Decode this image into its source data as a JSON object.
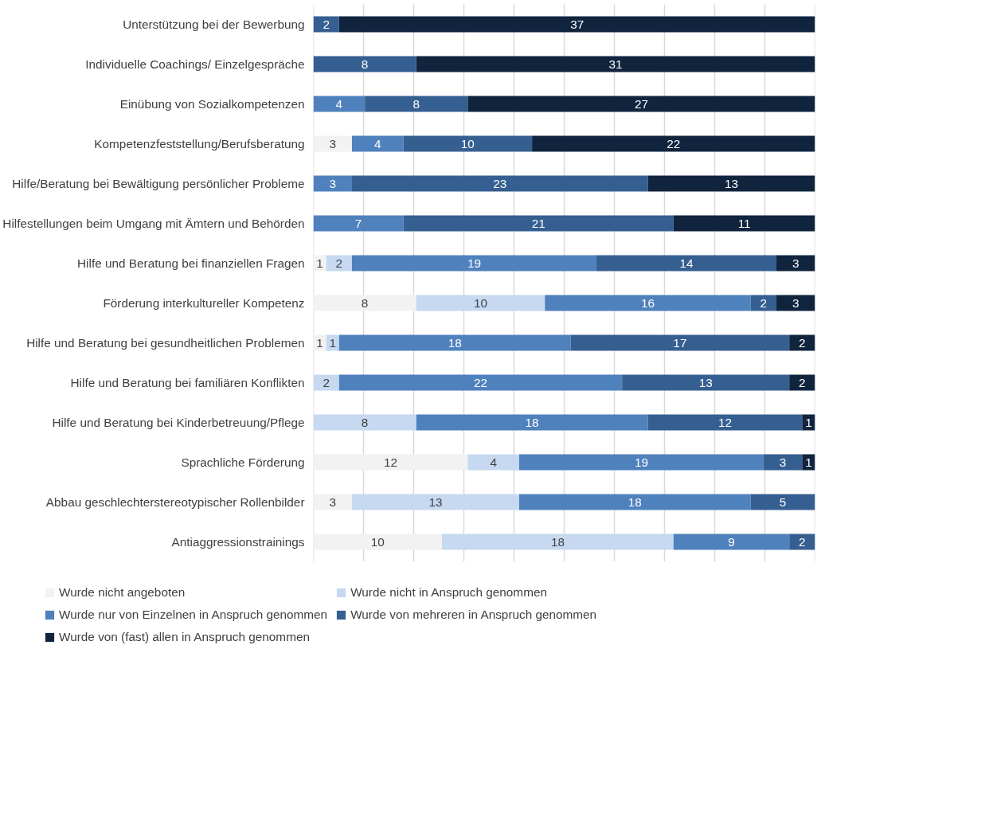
{
  "chart_data": {
    "type": "bar",
    "orientation": "horizontal",
    "stacked": true,
    "categories": [
      "Unterstützung bei der Bewerbung",
      "Individuelle Coachings/ Einzelgespräche",
      "Einübung von Sozialkompetenzen",
      "Kompetenzfeststellung/Berufsberatung",
      "Hilfe/Beratung bei Bewältigung persönlicher Probleme",
      "Hilfestellungen beim Umgang mit Ämtern und Behörden",
      "Hilfe und Beratung bei finanziellen Fragen",
      "Förderung interkultureller Kompetenz",
      "Hilfe und Beratung bei gesundheitlichen Problemen",
      "Hilfe und Beratung bei familiären Konflikten",
      "Hilfe und Beratung bei Kinderbetreuung/Pflege",
      "Sprachliche Förderung",
      "Abbau geschlechterstereotypischer Rollenbilder",
      "Antiaggressionstrainings"
    ],
    "series": [
      {
        "name": "Wurde nicht angeboten",
        "color": "#f2f2f2",
        "values": [
          null,
          null,
          null,
          3,
          null,
          null,
          1,
          8,
          1,
          null,
          null,
          12,
          3,
          10
        ]
      },
      {
        "name": "Wurde nicht in Anspruch genommen",
        "color": "#c6d9f1",
        "values": [
          null,
          null,
          null,
          null,
          null,
          null,
          2,
          10,
          1,
          2,
          8,
          4,
          13,
          18
        ]
      },
      {
        "name": "Wurde nur von Einzelnen in Anspruch genommen",
        "color": "#4f81bd",
        "values": [
          null,
          null,
          4,
          4,
          3,
          7,
          19,
          16,
          18,
          22,
          18,
          19,
          18,
          9
        ]
      },
      {
        "name": "Wurde von mehreren in Anspruch genommen",
        "color": "#365f91",
        "values": [
          2,
          8,
          8,
          10,
          23,
          21,
          14,
          2,
          17,
          13,
          12,
          3,
          5,
          2
        ]
      },
      {
        "name": "Wurde von (fast) allen in Anspruch genommen",
        "color": "#10243e",
        "values": [
          37,
          31,
          27,
          22,
          13,
          11,
          3,
          3,
          2,
          2,
          1,
          1,
          null,
          null
        ]
      }
    ],
    "xlim": [
      0,
      39
    ],
    "xticks": [
      {
        "value": 0,
        "label": null
      },
      {
        "value": 3.9,
        "label": null
      },
      {
        "value": 7.8,
        "label": null
      },
      {
        "value": 11.7,
        "label": null
      },
      {
        "value": 15.6,
        "label": null
      },
      {
        "value": 19.5,
        "label": null
      },
      {
        "value": 23.4,
        "label": null
      },
      {
        "value": 27.3,
        "label": null
      },
      {
        "value": 31.2,
        "label": null
      },
      {
        "value": 35.1,
        "label": null
      },
      {
        "value": 39,
        "label": null
      }
    ],
    "grid": "x",
    "tick_labels": "y",
    "data_labels": true,
    "legend": "bottom"
  }
}
